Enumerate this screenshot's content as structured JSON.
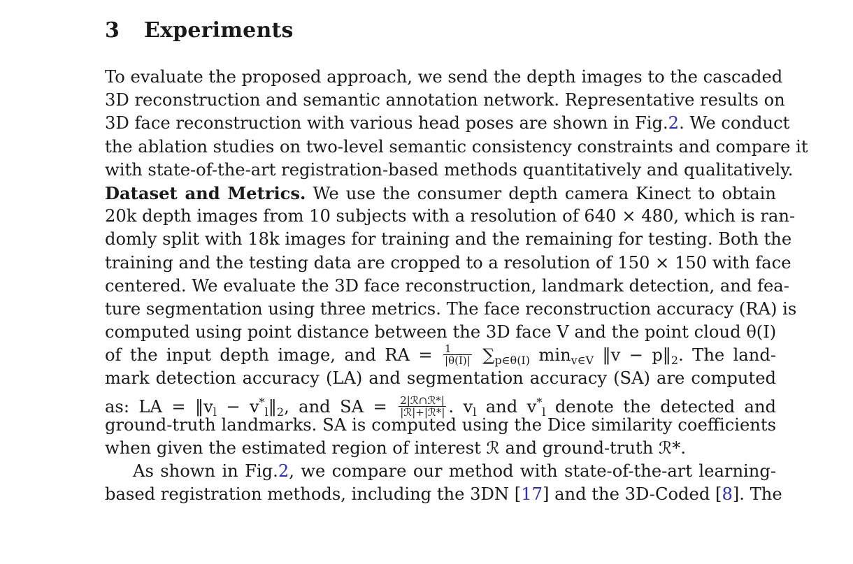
{
  "section": {
    "number": "3",
    "title": "Experiments"
  },
  "paragraph1": {
    "l1": "To evaluate the proposed approach, we send the depth images to the cascaded",
    "l2": "3D reconstruction and semantic annotation network. Representative results on",
    "l3_a": "3D face reconstruction with various head poses are shown in Fig.",
    "l3_ref": "2",
    "l3_b": ". We conduct",
    "l4": "the ablation studies on two-level semantic consistency constraints and compare it",
    "l5": "with state-of-the-art registration-based methods quantitatively and qualitatively."
  },
  "paragraph2": {
    "bold": "Dataset and Metrics.",
    "l6_b": " We use the consumer depth camera Kinect to obtain",
    "l7": "20k depth images from 10 subjects with a resolution of 640 × 480, which is ran-",
    "l8": "domly split with 18k images for training and the remaining for testing. Both the",
    "l9": "training and the testing data are cropped to a resolution of 150 × 150 with face",
    "l10": "centered. We evaluate the 3D face reconstruction, landmark detection, and fea-",
    "l11": "ture segmentation using three metrics. The face reconstruction accuracy (RA) is",
    "l12": "computed using point distance between the 3D face V and the point cloud θ(I)",
    "l13_a": "of the input depth image, and RA = ",
    "l13_frac_num": "1",
    "l13_frac_den": "|θ(I)|",
    "l13_b": " ∑",
    "l13_sub1": "p∈θ(I)",
    "l13_c": " min",
    "l13_sub2": "v∈V",
    "l13_d": " ‖v − p‖",
    "l13_sub3": "2",
    "l13_e": ". The land-",
    "l14": "mark detection accuracy (LA) and segmentation accuracy (SA) are computed",
    "l15_a": "as: LA = ‖v",
    "l15_sub1": "l",
    "l15_b": " − v",
    "l15_sup1": "*",
    "l15_sub2": "l",
    "l15_c": "‖",
    "l15_sub3": "2",
    "l15_d": ", and SA = ",
    "l15_frac_num": "2|ℛ∩ℛ*|",
    "l15_frac_den": "|ℛ|+|ℛ*|",
    "l15_e": ". v",
    "l15_sub4": "l",
    "l15_f": " and v",
    "l15_sup2": "*",
    "l15_sub5": "l",
    "l15_g": " denote the detected and",
    "l16": "ground-truth landmarks. SA is computed using the Dice similarity coefficients",
    "l17": "when given the estimated region of interest ℛ and ground-truth ℛ*."
  },
  "paragraph3": {
    "l18_a": "As shown in Fig.",
    "l18_ref": "2",
    "l18_b": ", we compare our method with state-of-the-art learning-",
    "l19_a": "based registration methods, including the 3DN [",
    "l19_ref1": "17",
    "l19_b": "] and the 3D-Coded [",
    "l19_ref2": "8",
    "l19_c": "]. The"
  },
  "colors": {
    "text": "#1a1a1a",
    "link": "#2b2bd6",
    "background": "#ffffff"
  }
}
